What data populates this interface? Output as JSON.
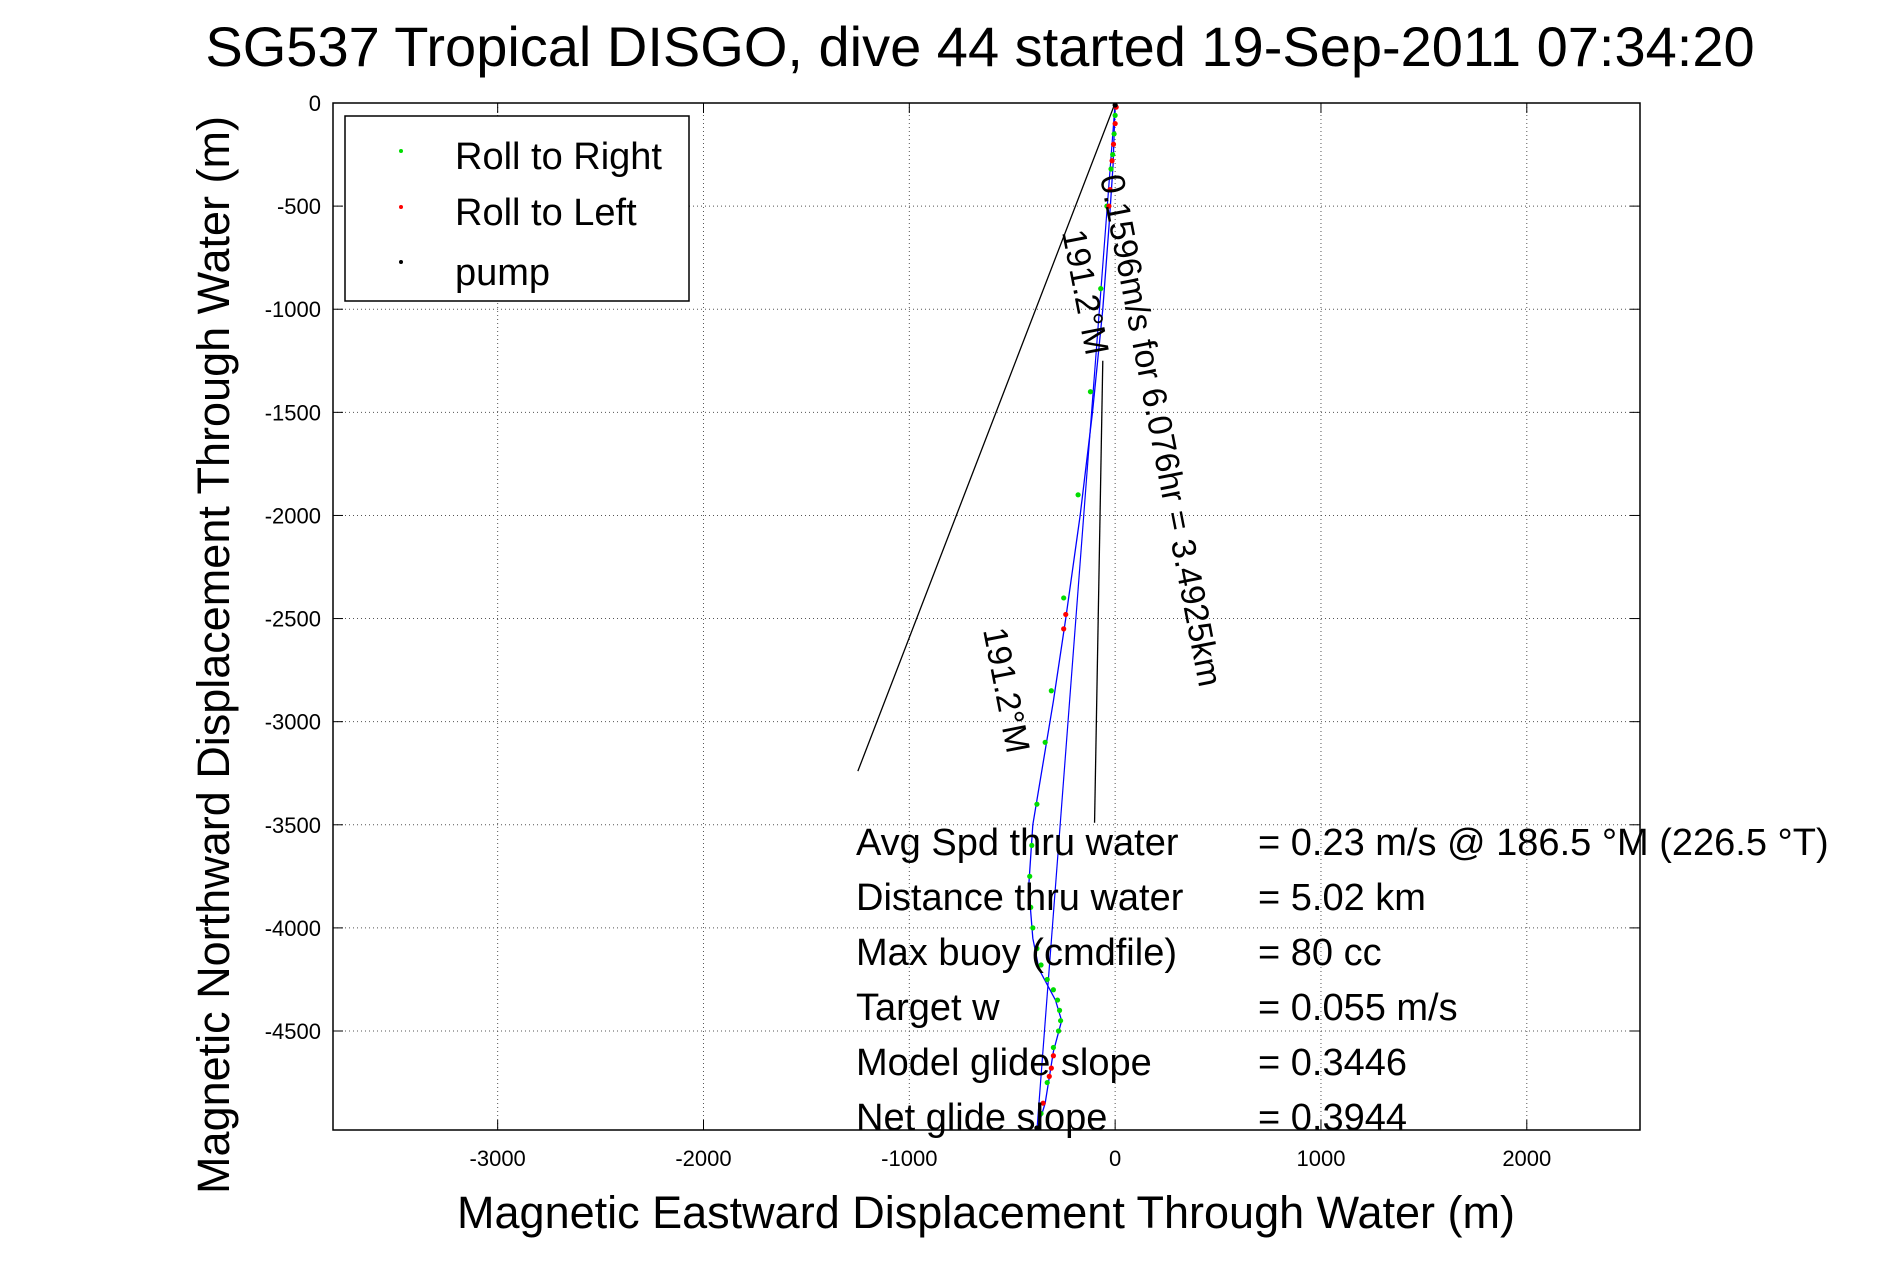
{
  "chart_data": {
    "type": "scatter",
    "title": "SG537 Tropical DISGO, dive 44 started 19-Sep-2011 07:34:20",
    "xlabel": "Magnetic Eastward Displacement Through Water (m)",
    "ylabel": "Magnetic Northward Displacement Through Water (m)",
    "xlim": [
      -3800,
      2550
    ],
    "ylim": [
      -4980,
      0
    ],
    "xticks": [
      -3000,
      -2000,
      -1000,
      0,
      1000,
      2000
    ],
    "yticks": [
      0,
      -500,
      -1000,
      -1500,
      -2000,
      -2500,
      -3000,
      -3500,
      -4000,
      -4500
    ],
    "grid": true,
    "legend_position": "top-left",
    "legend": [
      {
        "name": "Roll to Right",
        "color": "#00dd00"
      },
      {
        "name": "Roll to Left",
        "color": "#ff0000"
      },
      {
        "name": "pump",
        "color": "#000000"
      }
    ],
    "track_color": "#0000ff",
    "track": [
      [
        0,
        0
      ],
      [
        -10,
        -300
      ],
      [
        -30,
        -600
      ],
      [
        -60,
        -1000
      ],
      [
        -110,
        -1500
      ],
      [
        -170,
        -2000
      ],
      [
        -240,
        -2500
      ],
      [
        -300,
        -2900
      ],
      [
        -350,
        -3200
      ],
      [
        -400,
        -3500
      ],
      [
        -420,
        -3800
      ],
      [
        -400,
        -4050
      ],
      [
        -370,
        -4200
      ],
      [
        -290,
        -4350
      ],
      [
        -260,
        -4450
      ],
      [
        -300,
        -4600
      ],
      [
        -340,
        -4850
      ],
      [
        -380,
        -4980
      ]
    ],
    "series": [
      {
        "name": "Roll to Right",
        "color": "#00dd00",
        "points": [
          [
            0,
            -60
          ],
          [
            -5,
            -150
          ],
          [
            -12,
            -250
          ],
          [
            -20,
            -320
          ],
          [
            -40,
            -500
          ],
          [
            -70,
            -900
          ],
          [
            -120,
            -1400
          ],
          [
            -180,
            -1900
          ],
          [
            -250,
            -2400
          ],
          [
            -310,
            -2850
          ],
          [
            -340,
            -3100
          ],
          [
            -380,
            -3400
          ],
          [
            -405,
            -3600
          ],
          [
            -415,
            -3750
          ],
          [
            -410,
            -3900
          ],
          [
            -400,
            -4000
          ],
          [
            -380,
            -4100
          ],
          [
            -360,
            -4180
          ],
          [
            -330,
            -4250
          ],
          [
            -300,
            -4300
          ],
          [
            -280,
            -4350
          ],
          [
            -270,
            -4400
          ],
          [
            -265,
            -4450
          ],
          [
            -275,
            -4500
          ],
          [
            -300,
            -4580
          ],
          [
            -330,
            -4750
          ],
          [
            -360,
            -4900
          ]
        ]
      },
      {
        "name": "Roll to Left",
        "color": "#ff0000",
        "points": [
          [
            5,
            -20
          ],
          [
            0,
            -100
          ],
          [
            -8,
            -200
          ],
          [
            -15,
            -280
          ],
          [
            -25,
            -420
          ],
          [
            -30,
            -500
          ],
          [
            -240,
            -2480
          ],
          [
            -250,
            -2550
          ],
          [
            -300,
            -4620
          ],
          [
            -310,
            -4680
          ],
          [
            -320,
            -4720
          ],
          [
            -350,
            -4850
          ]
        ]
      },
      {
        "name": "pump",
        "color": "#000000",
        "points": [
          [
            0,
            -10
          ],
          [
            -380,
            -4970
          ]
        ]
      }
    ],
    "current_vector": {
      "from": [
        0,
        0
      ],
      "to": [
        -1250,
        -3240
      ]
    },
    "current_vector_line2": {
      "from": [
        -60,
        -1250
      ],
      "to": [
        -100,
        -3490
      ]
    },
    "rotated_labels": [
      "0.1596m/s for 6.076hr = 3.4925km",
      "191.2°M",
      "191.2°M"
    ],
    "annotations": [
      {
        "label": "Avg Spd thru water",
        "value": "=  0.23 m/s @ 186.5 °M (226.5 °T)"
      },
      {
        "label": "Distance thru water",
        "value": "=  5.02 km"
      },
      {
        "label": "Max buoy (cmdfile)",
        "value": "= 80 cc"
      },
      {
        "label": "Target w",
        "value": "= 0.055 m/s"
      },
      {
        "label": "Model glide slope",
        "value": "= 0.3446"
      },
      {
        "label": "Net glide slope",
        "value": "= 0.3944"
      }
    ]
  }
}
